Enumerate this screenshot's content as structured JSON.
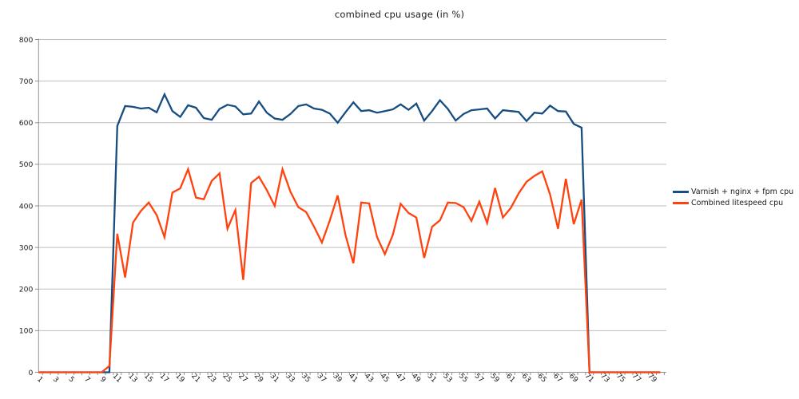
{
  "chart_data": {
    "type": "line",
    "title": "combined cpu usage (in %)",
    "xlabel": "",
    "ylabel": "",
    "ylim": [
      0,
      800
    ],
    "y_tick_labels": [
      "0",
      "100",
      "200",
      "300",
      "400",
      "500",
      "600",
      "700",
      "800"
    ],
    "x_tick_labels": [
      "1",
      "3",
      "5",
      "7",
      "9",
      "11",
      "13",
      "15",
      "17",
      "19",
      "21",
      "23",
      "25",
      "27",
      "29",
      "31",
      "33",
      "35",
      "37",
      "39",
      "41",
      "43",
      "45",
      "47",
      "49",
      "51",
      "53",
      "55",
      "57",
      "59",
      "61",
      "63",
      "65",
      "67",
      "69",
      "71",
      "73",
      "75",
      "77",
      "79"
    ],
    "n_points": 80,
    "grid": "horizontal gridlines every 100, light gray",
    "legend_position": "right",
    "grid_color": "#bdbdbd",
    "axis_color": "#919191",
    "text_color": "#1a1a1a",
    "series": [
      {
        "name": "Varnish + nginx + fpm cpu",
        "color": "#174d80",
        "values": [
          0,
          0,
          0,
          0,
          0,
          0,
          0,
          0,
          0,
          0,
          592,
          640,
          638,
          634,
          636,
          625,
          668,
          628,
          614,
          642,
          636,
          611,
          607,
          633,
          643,
          639,
          620,
          622,
          651,
          624,
          610,
          607,
          621,
          640,
          644,
          634,
          631,
          622,
          600,
          625,
          649,
          628,
          630,
          624,
          628,
          632,
          644,
          631,
          646,
          605,
          628,
          654,
          633,
          605,
          621,
          630,
          632,
          634,
          610,
          630,
          628,
          626,
          604,
          624,
          622,
          641,
          628,
          627,
          597,
          588,
          0,
          0,
          0,
          0,
          0,
          0,
          0,
          0,
          0,
          0
        ]
      },
      {
        "name": "Combined litespeed cpu",
        "color": "#ff420e",
        "values": [
          0,
          0,
          0,
          0,
          0,
          0,
          0,
          0,
          0,
          15,
          333,
          228,
          360,
          388,
          408,
          378,
          325,
          432,
          442,
          488,
          420,
          416,
          460,
          478,
          345,
          390,
          222,
          455,
          470,
          438,
          400,
          488,
          434,
          397,
          385,
          350,
          312,
          365,
          425,
          330,
          262,
          408,
          406,
          325,
          284,
          330,
          405,
          383,
          372,
          275,
          350,
          365,
          408,
          407,
          397,
          364,
          410,
          359,
          443,
          372,
          395,
          430,
          458,
          472,
          483,
          427,
          345,
          465,
          356,
          415,
          0,
          0,
          0,
          0,
          0,
          0,
          0,
          0,
          0,
          0
        ]
      }
    ]
  }
}
